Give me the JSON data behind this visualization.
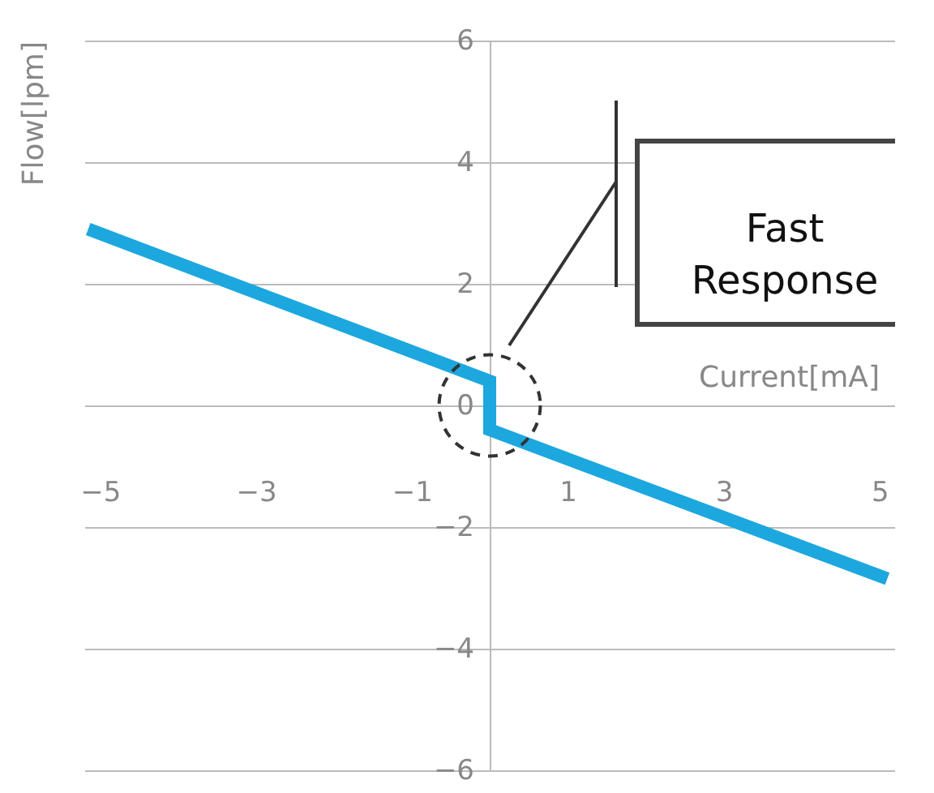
{
  "chart_data": {
    "type": "line",
    "xlabel": "Current[mA]",
    "ylabel": "Flow[lpm]",
    "x": [
      -5.15,
      0,
      0,
      5.1
    ],
    "series": [
      {
        "color": "#1da7df",
        "values": [
          2.9,
          0.4,
          -0.4,
          -2.85
        ]
      }
    ],
    "xlim": [
      -5.2,
      5.2
    ],
    "xticks": [
      -5,
      -3,
      -1,
      1,
      3,
      5
    ],
    "ylim": [
      -6,
      6
    ],
    "yticks": [
      -6,
      -4,
      -2,
      0,
      2,
      4,
      6
    ],
    "grid": "y",
    "line_style": "solid",
    "marker": "none",
    "annotations": [
      "Fast Response"
    ]
  }
}
